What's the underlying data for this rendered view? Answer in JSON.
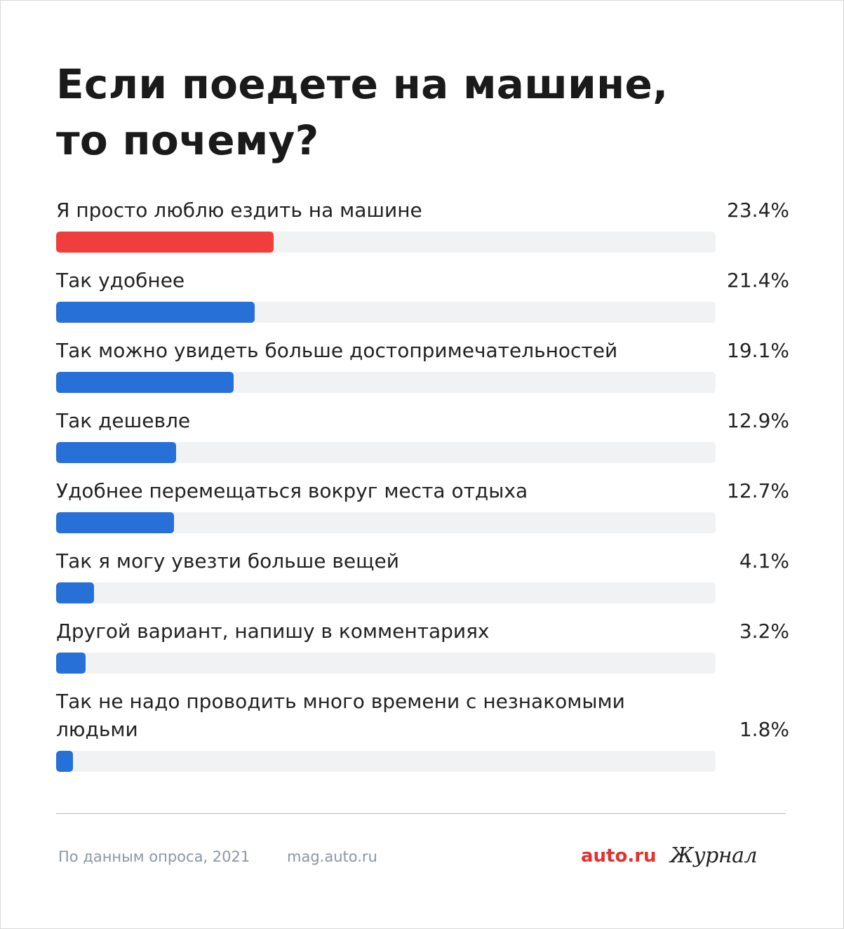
{
  "title_line1": "Если поедете на машине,",
  "title_line2": "то почему?",
  "chart_data": {
    "type": "bar",
    "orientation": "horizontal",
    "title": "Если поедете на машине, то почему?",
    "categories": [
      "Я просто люблю ездить на машине",
      "Так удобнее",
      "Так можно увидеть больше достопримечательностей",
      "Так дешевле",
      "Удобнее перемещаться вокруг места отдыха",
      "Так я могу увезти больше вещей",
      "Другой вариант, напишу в комментариях",
      "Так не надо проводить много времени с незнакомыми людьми"
    ],
    "values": [
      23.4,
      21.4,
      19.1,
      12.9,
      12.7,
      4.1,
      3.2,
      1.8
    ],
    "value_labels": [
      "23.4%",
      "21.4%",
      "19.1%",
      "12.9%",
      "12.7%",
      "4.1%",
      "3.2%",
      "1.8%"
    ],
    "highlight_color": "#f03e3e",
    "bar_color": "#2770d8",
    "track_color": "#f1f2f4",
    "grid": false
  },
  "footer": {
    "source": "По данным опроса, 2021",
    "site": "mag.auto.ru",
    "brand": "auto.ru",
    "brand_journal": "Журнал"
  }
}
